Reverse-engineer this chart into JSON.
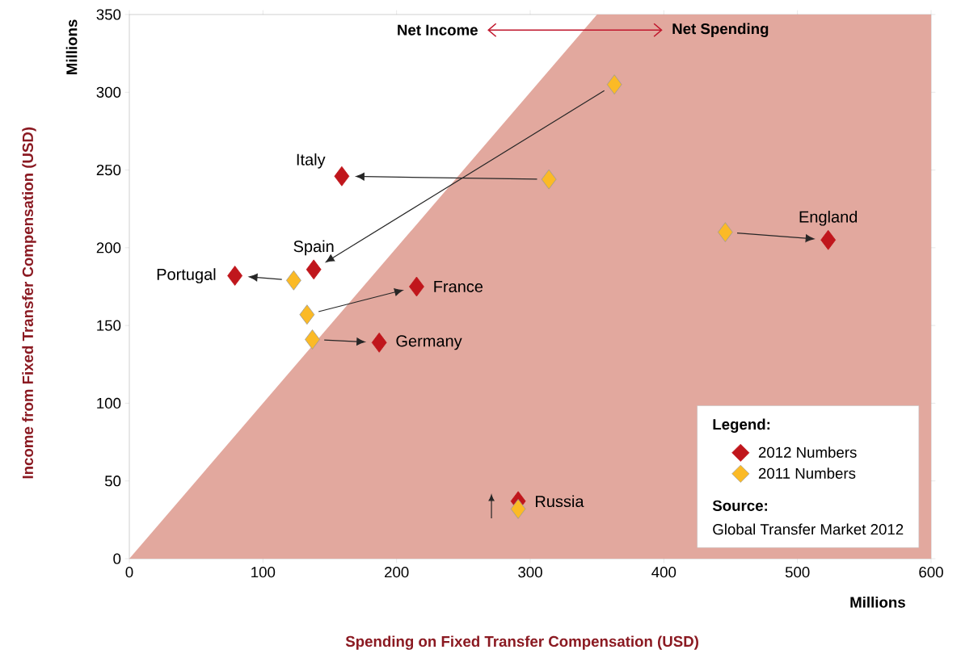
{
  "chart_data": {
    "type": "scatter",
    "xlabel": "Spending on Fixed Transfer Compensation (USD)",
    "ylabel": "Income from Fixed Transfer Compensation (USD)",
    "legend_title": "Legend:",
    "xlim": [
      0,
      600
    ],
    "xticks": [
      0,
      100,
      200,
      300,
      400,
      500,
      600
    ],
    "ylim": [
      0,
      350
    ],
    "yticks": [
      0,
      50,
      100,
      150,
      200,
      250,
      300,
      350
    ],
    "legend": "bottom right",
    "series": [
      {
        "type": "area",
        "color": "#e2a89e",
        "x": [
          0,
          350,
          600
        ],
        "values": [
          0,
          350,
          350
        ]
      },
      {
        "name": "2012 Numbers",
        "color": "#c0161c",
        "marker": "diamond",
        "x": [
          159,
          138,
          79,
          215,
          187,
          523,
          291
        ],
        "values": [
          246,
          186,
          182,
          175,
          139,
          205,
          37
        ]
      },
      {
        "name": "2011 Numbers",
        "color": "#fbba26",
        "marker": "diamond",
        "x": [
          314,
          363,
          123,
          133,
          137,
          446,
          291
        ],
        "values": [
          244,
          305,
          179,
          157,
          141,
          210,
          32
        ]
      }
    ],
    "annotations": [
      "Net Income",
      "Net Spending",
      "Millions",
      "Millions",
      "Source:",
      "Global Transfer Market 2012",
      {
        "text": "Italy",
        "x": 159,
        "y": 246
      },
      {
        "text": "Spain",
        "x": 138,
        "y": 186
      },
      {
        "text": "Portugal",
        "x": 79,
        "y": 182
      },
      {
        "text": "France",
        "x": 215,
        "y": 175
      },
      {
        "text": "Germany",
        "x": 187,
        "y": 139
      },
      {
        "text": "England",
        "x": 523,
        "y": 205
      },
      {
        "text": "Russia",
        "x": 291,
        "y": 37
      }
    ]
  }
}
